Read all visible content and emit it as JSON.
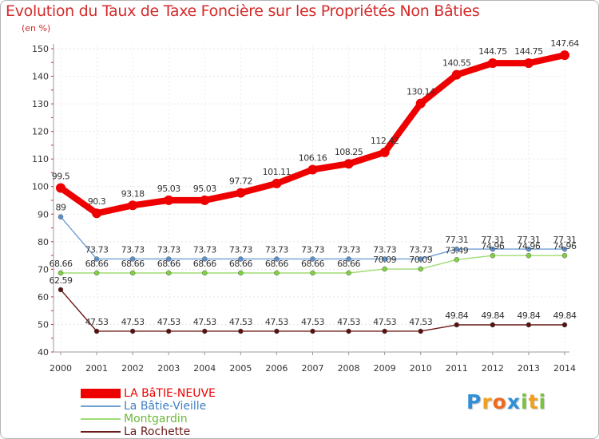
{
  "chart_data": {
    "type": "line",
    "title": "Evolution du Taux de Taxe Foncière sur les Propriétés Non Bâties",
    "ylabel": "(en %)",
    "ylim": [
      40,
      150
    ],
    "yticks": [
      40,
      50,
      60,
      70,
      80,
      90,
      100,
      110,
      120,
      130,
      140,
      150
    ],
    "ytick_labels": [
      "40",
      "50",
      "60",
      "70",
      "80",
      "90",
      "100",
      "110",
      "120",
      "130",
      "140",
      "150"
    ],
    "categories": [
      "2000",
      "2001",
      "2002",
      "2003",
      "2004",
      "2005",
      "2006",
      "2007",
      "2008",
      "2009",
      "2010",
      "2011",
      "2012",
      "2013",
      "2014"
    ],
    "series": [
      {
        "name": "LA BâTIE-NEUVE",
        "color": "#ee0000",
        "marker_color": "#ee0000",
        "thick": true,
        "values": [
          99.5,
          90.3,
          93.18,
          95.03,
          95.03,
          97.72,
          101.11,
          106.16,
          108.25,
          112.42,
          130.14,
          140.55,
          144.75,
          144.75,
          147.64
        ],
        "labels": [
          "99.5",
          "90.3",
          "93.18",
          "95.03",
          "95.03",
          "97.72",
          "101.11",
          "106.16",
          "108.25",
          "112.42",
          "130.14",
          "140.55",
          "144.75",
          "144.75",
          "147.64"
        ]
      },
      {
        "name": "La Bâtie-Vieille",
        "color": "#6e9fd3",
        "marker_color": "#5a8fd0",
        "thick": false,
        "values": [
          89,
          73.73,
          73.73,
          73.73,
          73.73,
          73.73,
          73.73,
          73.73,
          73.73,
          73.73,
          73.73,
          77.31,
          77.31,
          77.31,
          77.31
        ],
        "labels": [
          "89",
          "73.73",
          "73.73",
          "73.73",
          "73.73",
          "73.73",
          "73.73",
          "73.73",
          "73.73",
          "73.73",
          "73.73",
          "77.31",
          "77.31",
          "77.31",
          "77.31"
        ]
      },
      {
        "name": "Montgardin",
        "color": "#9fdc72",
        "marker_color": "#7ed33c",
        "thick": false,
        "values": [
          68.66,
          68.66,
          68.66,
          68.66,
          68.66,
          68.66,
          68.66,
          68.66,
          68.66,
          70.09,
          70.09,
          73.49,
          74.96,
          74.96,
          74.96
        ],
        "labels": [
          "68.66",
          "68.66",
          "68.66",
          "68.66",
          "68.66",
          "68.66",
          "68.66",
          "68.66",
          "68.66",
          "70.09",
          "70.09",
          "73.49",
          "74.96",
          "74.96",
          "74.96"
        ]
      },
      {
        "name": "La Rochette",
        "color": "#6b1a1a",
        "marker_color": "#5a1010",
        "thick": false,
        "values": [
          62.59,
          47.53,
          47.53,
          47.53,
          47.53,
          47.53,
          47.53,
          47.53,
          47.53,
          47.53,
          47.53,
          49.84,
          49.84,
          49.84,
          49.84
        ],
        "labels": [
          "62.59",
          "47.53",
          "47.53",
          "47.53",
          "47.53",
          "47.53",
          "47.53",
          "47.53",
          "47.53",
          "47.53",
          "47.53",
          "49.84",
          "49.84",
          "49.84",
          "49.84"
        ]
      }
    ],
    "legend_position": "bottom-left"
  },
  "legend": [
    {
      "label": "LA BâTIE-NEUVE",
      "color": "#ee0000"
    },
    {
      "label": "La Bâtie-Vieille",
      "color": "#6e9fd3"
    },
    {
      "label": "Montgardin",
      "color": "#9fdc72"
    },
    {
      "label": "La Rochette",
      "color": "#6b1a1a"
    }
  ],
  "logo": {
    "letters": [
      "P",
      "r",
      "o",
      "x",
      "i",
      "t",
      "i"
    ],
    "colors": [
      "#2f8fd8",
      "#f0a020",
      "#f06a20",
      "#2f8fd8",
      "#7ac142",
      "#f0a020",
      "#7ac142"
    ]
  }
}
